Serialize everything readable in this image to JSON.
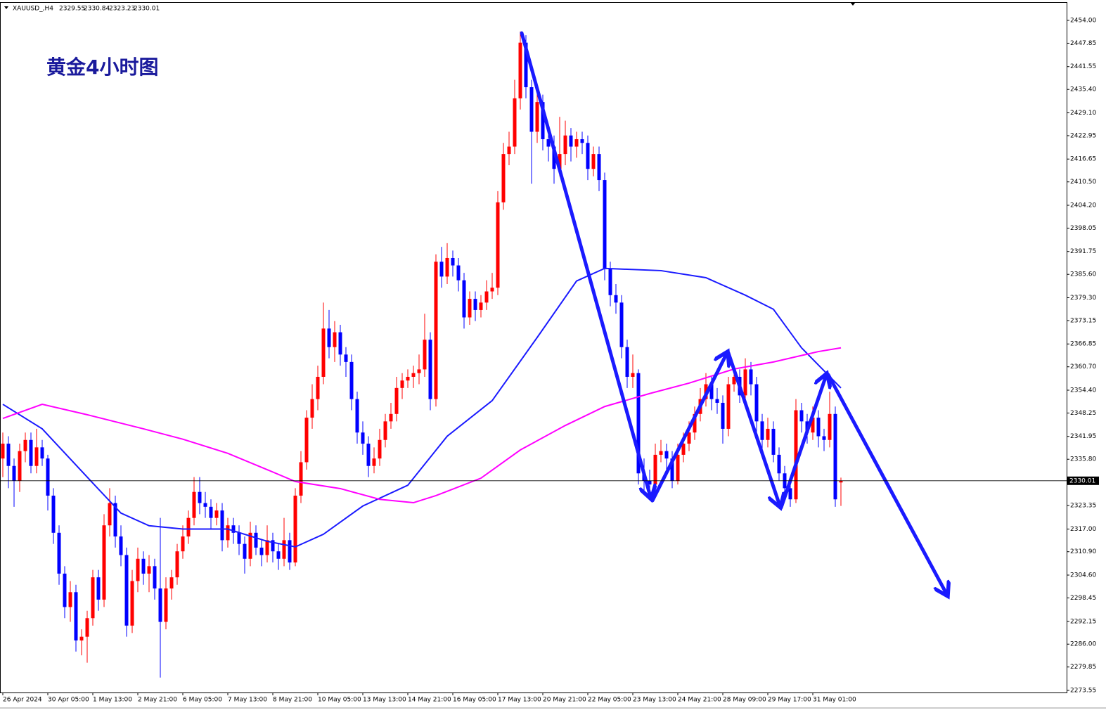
{
  "chart_data": {
    "type": "candlestick",
    "symbol": "XAUUSD_,H4",
    "title": "黄金4小时图",
    "up_color": "#ff0000",
    "down_color": "#0000ff",
    "ylim": [
      2272.98,
      2458.54
    ],
    "yticks": [
      {
        "value": 2454.0,
        "label": "2454.00"
      },
      {
        "value": 2447.85,
        "label": "2447.85"
      },
      {
        "value": 2441.55,
        "label": "2441.55"
      },
      {
        "value": 2435.4,
        "label": "2435.40"
      },
      {
        "value": 2429.1,
        "label": "2429.10"
      },
      {
        "value": 2422.95,
        "label": "2422.95"
      },
      {
        "value": 2416.65,
        "label": "2416.65"
      },
      {
        "value": 2410.5,
        "label": "2410.50"
      },
      {
        "value": 2404.2,
        "label": "2404.20"
      },
      {
        "value": 2398.05,
        "label": "2398.05"
      },
      {
        "value": 2391.75,
        "label": "2391.75"
      },
      {
        "value": 2385.6,
        "label": "2385.60"
      },
      {
        "value": 2379.3,
        "label": "2379.30"
      },
      {
        "value": 2373.15,
        "label": "2373.15"
      },
      {
        "value": 2366.85,
        "label": "2366.85"
      },
      {
        "value": 2360.7,
        "label": "2360.70"
      },
      {
        "value": 2354.4,
        "label": "2354.40"
      },
      {
        "value": 2348.25,
        "label": "2348.25"
      },
      {
        "value": 2341.95,
        "label": "2341.95"
      },
      {
        "value": 2335.8,
        "label": "2335.80"
      },
      {
        "value": 2323.35,
        "label": "2323.35"
      },
      {
        "value": 2317.0,
        "label": "2317.00"
      },
      {
        "value": 2310.9,
        "label": "2310.90"
      },
      {
        "value": 2304.6,
        "label": "2304.60"
      },
      {
        "value": 2298.45,
        "label": "2298.45"
      },
      {
        "value": 2292.15,
        "label": "2292.15"
      },
      {
        "value": 2286.0,
        "label": "2286.00"
      },
      {
        "value": 2279.85,
        "label": "2279.85"
      },
      {
        "value": 2273.55,
        "label": "2273.55"
      }
    ],
    "categories": [
      "26 Apr 2024",
      null,
      null,
      null,
      null,
      null,
      null,
      null,
      "30 Apr 05:00",
      null,
      null,
      null,
      null,
      null,
      null,
      null,
      "1 May 13:00",
      null,
      null,
      null,
      null,
      null,
      null,
      null,
      "2 May 21:00",
      null,
      null,
      null,
      null,
      null,
      null,
      null,
      "6 May 05:00",
      null,
      null,
      null,
      null,
      null,
      null,
      null,
      "7 May 13:00",
      null,
      null,
      null,
      null,
      null,
      null,
      null,
      "8 May 21:00",
      null,
      null,
      null,
      null,
      null,
      null,
      null,
      "10 May 05:00",
      null,
      null,
      null,
      null,
      null,
      null,
      null,
      "13 May 13:00",
      null,
      null,
      null,
      null,
      null,
      null,
      null,
      "14 May 21:00",
      null,
      null,
      null,
      null,
      null,
      null,
      null,
      "16 May 05:00",
      null,
      null,
      null,
      null,
      null,
      null,
      null,
      "17 May 13:00",
      null,
      null,
      null,
      null,
      null,
      null,
      null,
      "20 May 21:00",
      null,
      null,
      null,
      null,
      null,
      null,
      null,
      "22 May 05:00",
      null,
      null,
      null,
      null,
      null,
      null,
      null,
      "23 May 13:00",
      null,
      null,
      null,
      null,
      null,
      null,
      null,
      "24 May 21:00",
      null,
      null,
      null,
      null,
      null,
      null,
      null,
      "28 May 09:00",
      null,
      null,
      null,
      null,
      null,
      null,
      null,
      "29 May 17:00",
      null,
      null,
      null,
      null,
      null,
      null,
      null,
      "31 May 01:00",
      null,
      null,
      null,
      null,
      null
    ],
    "ohlc": [
      [
        2336,
        2343,
        2331,
        2340
      ],
      [
        2340,
        2342,
        2328,
        2334
      ],
      [
        2334,
        2336,
        2323,
        2330
      ],
      [
        2330,
        2340,
        2327,
        2338
      ],
      [
        2338,
        2343,
        2335,
        2341
      ],
      [
        2341,
        2343,
        2332,
        2334
      ],
      [
        2334,
        2344,
        2332,
        2339
      ],
      [
        2339,
        2341,
        2334,
        2336
      ],
      [
        2336,
        2337,
        2322,
        2326
      ],
      [
        2326,
        2328,
        2313,
        2316
      ],
      [
        2316,
        2318,
        2302,
        2305
      ],
      [
        2305,
        2307,
        2293,
        2296
      ],
      [
        2296,
        2303,
        2292,
        2300
      ],
      [
        2300,
        2302,
        2284,
        2287
      ],
      [
        2287,
        2290,
        2283,
        2288
      ],
      [
        2288,
        2295,
        2281,
        2293
      ],
      [
        2293,
        2306,
        2291,
        2304
      ],
      [
        2304,
        2306,
        2295,
        2298
      ],
      [
        2298,
        2321,
        2296,
        2318
      ],
      [
        2318,
        2328,
        2315,
        2324
      ],
      [
        2324,
        2326,
        2312,
        2315
      ],
      [
        2315,
        2318,
        2307,
        2310
      ],
      [
        2310,
        2312,
        2288,
        2291
      ],
      [
        2291,
        2306,
        2289,
        2303
      ],
      [
        2303,
        2312,
        2300,
        2309
      ],
      [
        2309,
        2311,
        2302,
        2305
      ],
      [
        2305,
        2310,
        2300,
        2307
      ],
      [
        2307,
        2309,
        2298,
        2301
      ],
      [
        2301,
        2320,
        2277,
        2292
      ],
      [
        2292,
        2304,
        2290,
        2301
      ],
      [
        2301,
        2306,
        2298,
        2304
      ],
      [
        2304,
        2313,
        2302,
        2311
      ],
      [
        2311,
        2318,
        2309,
        2315
      ],
      [
        2315,
        2322,
        2313,
        2320
      ],
      [
        2320,
        2331,
        2318,
        2327
      ],
      [
        2327,
        2331,
        2321,
        2324
      ],
      [
        2324,
        2327,
        2320,
        2323
      ],
      [
        2323,
        2325,
        2317,
        2320
      ],
      [
        2320,
        2324,
        2318,
        2322
      ],
      [
        2322,
        2324,
        2311,
        2314
      ],
      [
        2314,
        2320,
        2312,
        2318
      ],
      [
        2318,
        2320,
        2313,
        2316
      ],
      [
        2316,
        2318,
        2310,
        2313
      ],
      [
        2313,
        2315,
        2305,
        2309
      ],
      [
        2309,
        2319,
        2307,
        2316
      ],
      [
        2316,
        2318,
        2310,
        2312
      ],
      [
        2312,
        2314,
        2307,
        2310
      ],
      [
        2310,
        2318,
        2308,
        2314
      ],
      [
        2314,
        2316,
        2308,
        2311
      ],
      [
        2311,
        2313,
        2306,
        2309
      ],
      [
        2309,
        2320,
        2307,
        2314
      ],
      [
        2314,
        2316,
        2306,
        2308
      ],
      [
        2308,
        2328,
        2307,
        2326
      ],
      [
        2326,
        2338,
        2324,
        2335
      ],
      [
        2335,
        2349,
        2333,
        2347
      ],
      [
        2347,
        2356,
        2344,
        2352
      ],
      [
        2352,
        2361,
        2349,
        2358
      ],
      [
        2358,
        2378,
        2356,
        2371
      ],
      [
        2371,
        2376,
        2363,
        2366
      ],
      [
        2366,
        2373,
        2362,
        2370
      ],
      [
        2370,
        2372,
        2361,
        2364
      ],
      [
        2364,
        2366,
        2358,
        2362
      ],
      [
        2362,
        2364,
        2349,
        2352
      ],
      [
        2352,
        2354,
        2340,
        2343
      ],
      [
        2343,
        2346,
        2337,
        2340
      ],
      [
        2340,
        2342,
        2331,
        2334
      ],
      [
        2334,
        2339,
        2332,
        2336
      ],
      [
        2336,
        2344,
        2334,
        2341
      ],
      [
        2341,
        2348,
        2339,
        2346
      ],
      [
        2346,
        2351,
        2344,
        2348
      ],
      [
        2348,
        2358,
        2346,
        2355
      ],
      [
        2355,
        2359,
        2352,
        2357
      ],
      [
        2357,
        2360,
        2355,
        2358
      ],
      [
        2358,
        2361,
        2355,
        2359
      ],
      [
        2359,
        2364,
        2356,
        2360
      ],
      [
        2360,
        2375,
        2358,
        2368
      ],
      [
        2368,
        2370,
        2349,
        2352
      ],
      [
        2352,
        2391,
        2350,
        2389
      ],
      [
        2389,
        2393,
        2382,
        2385
      ],
      [
        2385,
        2394,
        2383,
        2390
      ],
      [
        2390,
        2392,
        2385,
        2388
      ],
      [
        2388,
        2390,
        2381,
        2384
      ],
      [
        2384,
        2386,
        2371,
        2374
      ],
      [
        2374,
        2381,
        2372,
        2379
      ],
      [
        2379,
        2381,
        2373,
        2376
      ],
      [
        2376,
        2380,
        2374,
        2378
      ],
      [
        2378,
        2384,
        2376,
        2381
      ],
      [
        2381,
        2386,
        2379,
        2382
      ],
      [
        2382,
        2408,
        2380,
        2405
      ],
      [
        2405,
        2421,
        2403,
        2418
      ],
      [
        2418,
        2424,
        2415,
        2420
      ],
      [
        2420,
        2438,
        2418,
        2433
      ],
      [
        2433,
        2451,
        2430,
        2448
      ],
      [
        2448,
        2450,
        2433,
        2436
      ],
      [
        2436,
        2438,
        2410,
        2424
      ],
      [
        2424,
        2436,
        2421,
        2432
      ],
      [
        2432,
        2434,
        2419,
        2422
      ],
      [
        2422,
        2425,
        2416,
        2420
      ],
      [
        2420,
        2423,
        2410,
        2414
      ],
      [
        2414,
        2428,
        2412,
        2418
      ],
      [
        2418,
        2427,
        2415,
        2423
      ],
      [
        2423,
        2425,
        2416,
        2420
      ],
      [
        2420,
        2424,
        2417,
        2422
      ],
      [
        2422,
        2424,
        2418,
        2421
      ],
      [
        2421,
        2423,
        2411,
        2414
      ],
      [
        2414,
        2420,
        2412,
        2418
      ],
      [
        2418,
        2420,
        2408,
        2411
      ],
      [
        2411,
        2413,
        2384,
        2387
      ],
      [
        2387,
        2389,
        2377,
        2380
      ],
      [
        2380,
        2383,
        2375,
        2378
      ],
      [
        2378,
        2380,
        2363,
        2366
      ],
      [
        2366,
        2368,
        2355,
        2358
      ],
      [
        2358,
        2364,
        2355,
        2359
      ],
      [
        2359,
        2360,
        2329,
        2332
      ],
      [
        2332,
        2336,
        2327,
        2330
      ],
      [
        2330,
        2333,
        2325,
        2329
      ],
      [
        2329,
        2340,
        2327,
        2337
      ],
      [
        2337,
        2341,
        2335,
        2338
      ],
      [
        2338,
        2340,
        2333,
        2336
      ],
      [
        2336,
        2338,
        2328,
        2330
      ],
      [
        2330,
        2340,
        2329,
        2337
      ],
      [
        2337,
        2343,
        2335,
        2340
      ],
      [
        2340,
        2346,
        2338,
        2343
      ],
      [
        2343,
        2350,
        2341,
        2348
      ],
      [
        2348,
        2355,
        2346,
        2352
      ],
      [
        2352,
        2359,
        2350,
        2356
      ],
      [
        2356,
        2358,
        2349,
        2352
      ],
      [
        2352,
        2355,
        2348,
        2351
      ],
      [
        2351,
        2353,
        2340,
        2344
      ],
      [
        2344,
        2358,
        2342,
        2356
      ],
      [
        2356,
        2361,
        2354,
        2358
      ],
      [
        2358,
        2360,
        2351,
        2353
      ],
      [
        2353,
        2363,
        2351,
        2360
      ],
      [
        2360,
        2362,
        2353,
        2356
      ],
      [
        2356,
        2358,
        2343,
        2346
      ],
      [
        2346,
        2348,
        2338,
        2341
      ],
      [
        2341,
        2347,
        2339,
        2344
      ],
      [
        2344,
        2346,
        2335,
        2337
      ],
      [
        2337,
        2339,
        2330,
        2332
      ],
      [
        2332,
        2334,
        2326,
        2328
      ],
      [
        2328,
        2330,
        2323,
        2325
      ],
      [
        2325,
        2352,
        2324,
        2349
      ],
      [
        2349,
        2351,
        2343,
        2346
      ],
      [
        2346,
        2348,
        2340,
        2343
      ],
      [
        2343,
        2350,
        2341,
        2347
      ],
      [
        2347,
        2349,
        2339,
        2342
      ],
      [
        2342,
        2344,
        2338,
        2341
      ],
      [
        2341,
        2354,
        2339,
        2348
      ],
      [
        2348,
        2350,
        2323,
        2325
      ],
      [
        2329.55,
        2330.84,
        2323.23,
        2330.01
      ]
    ],
    "ma_lines": [
      {
        "color": "#1a1aff",
        "x": [
          0,
          7,
          15,
          21,
          26,
          32,
          40,
          47,
          52,
          57,
          64,
          72,
          79,
          87,
          95,
          102,
          107,
          117,
          125,
          132,
          137,
          142,
          149
        ],
        "values": [
          2350.6,
          2344,
          2331,
          2321.3,
          2317.9,
          2317,
          2317,
          2313.7,
          2312.2,
          2315.6,
          2323.2,
          2328.8,
          2342,
          2351.6,
          2368.6,
          2383.8,
          2387.2,
          2386.6,
          2384.7,
          2380,
          2376.2,
          2365.8,
          2355
        ]
      },
      {
        "color": "#ff00ff",
        "x": [
          0,
          7,
          15,
          25,
          32,
          40,
          47,
          52,
          60,
          67,
          73,
          77,
          85,
          92,
          100,
          107,
          115,
          122,
          130,
          137,
          145,
          149
        ],
        "values": [
          2346.8,
          2350.6,
          2347.8,
          2344,
          2341.2,
          2337.4,
          2333,
          2329.8,
          2327.9,
          2325,
          2324.1,
          2326,
          2330.7,
          2338.3,
          2344.9,
          2350,
          2353.5,
          2356.3,
          2360.1,
          2362,
          2364.8,
          2365.8
        ]
      }
    ]
  }
}
